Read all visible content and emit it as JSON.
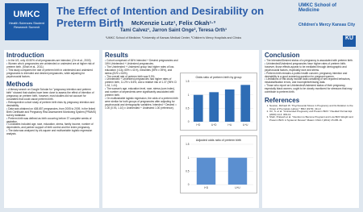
{
  "header": {
    "logo_left": {
      "title": "UMKC",
      "subtitle": "Health Sciences Student Research Summit"
    },
    "title": "The Effect of Intention and Desirability on Preterm Birth",
    "authors": "McKenzie Lutz¹, Felix Okah¹·³",
    "authors2": "Tami Calvez¹, Jarron Saint Onge², Teresa Orth¹",
    "affiliations": "¹UMKC School of Medicine, ²University of Kansas Medical Center, ³Children's Mercy Hospitals and Clinics",
    "logos_right": [
      "UMKC School of Medicine",
      "Children's Mercy Kansas City",
      "KU"
    ]
  },
  "introduction": {
    "heading": "Introduction",
    "bullets": [
      "In the US, only 40-50% of all pregnancies are intended. (Orr et al., 2000)",
      "Women who's pregnancies are unintended or undesired are at higher risk of preterm birth. (Shah et al., 2011)",
      "This study compares the rate of preterm birth in unintended and undesired pregnancies to intended and desired pregnancies, while adjusting for psychosocial factors."
    ]
  },
  "methods": {
    "heading": "Methods",
    "bullets": [
      "A literary search on Google Scholar for \"pregnancy intention and preterm birth\" showed that studies have been done to assess the effect of intention of pregnancy on preterm birth, however, most studies did not account for covariates that could cause preterm birth.",
      "Retrospective cohort study of preterm birth risks by pregnancy intention and desirability.",
      "Data was obtained on 408,657 pregnancies, from 2005 to 2009, in the linked Birth Certificate and Pregnancy Risk Assessment Monitoring System (PRAMS) survey database.",
      "Preterm birth was defined as birth occurring before 37 complete weeks of gestation.",
      "Covariates included age, race, education, stress, family income, number of dependents, and partner support of birth control and the index pregnancy.",
      "The data was analyzed by chi-square and multivariable logistic regression analysis."
    ]
  },
  "results": {
    "heading": "Results",
    "bullets": [
      "Cohort comprised of 84% Intended + Desired pregnancies and 16% Unintended + Undesired pregnancies.",
      "The Unintended + Undesired group had higher rates of low-education (<13y, 65% v 41%), minorities (59% v 39%), and stress (81% v 64%).",
      "The overall rate of preterm birth was 9.0%",
      "Unintended + Undesired pregnancies had higher rates of preterm birth, 11.2% v 8.6%, and a relative risk of 1.37 (95% CI 1.34, 1.41).",
      "The woman's age, education level, race, stress (sum index), and number of dependents were significantly associated with preterm birth.",
      "On multivariable logistic regression, the odds of a preterm birth were similar for both groups of pregnancies after adjusting for psychosocial and demographic variables; Intended + Desired = 1.00 (0.93, 1.10) v Unintended + Undesired 1.00 (reference)."
    ],
    "charts": [
      {
        "type": "bar",
        "title": "Odds ratio of preterm birth by group",
        "categories": [
          "I+D",
          "U+D",
          "I+U",
          "U+U"
        ],
        "values": [
          1,
          1.1,
          1.2,
          1.37
        ],
        "color": "#2f6db5",
        "ylim": [
          0,
          1.5
        ],
        "yticks": [
          0,
          0.5,
          1,
          1.5
        ]
      },
      {
        "type": "bar",
        "title": "Adjusted odds ratio of preterm birth",
        "categories": [
          "I+D",
          "U+U"
        ],
        "values": [
          1,
          1
        ],
        "color": "#5b8fd0",
        "ylim": [
          0,
          1.5
        ],
        "yticks": [
          0,
          0.5,
          1,
          1.5
        ]
      }
    ]
  },
  "conclusion": {
    "heading": "Conclusion",
    "bullets": [
      "The Intended/Desired status of a pregnancy is associated with preterm birth.",
      "Unintended/Undesired pregnancies have higher rates of preterm birth; however, those effects appear to be mediated through demographic and psychosocial factors, especially race and stress.",
      "Preterm birth remains a public health concern; pregnancy intention and desirability is a good screening question for pregnant women.",
      "Limitations of this study include data consisting of self-reported behaviors, misclassification errors, and incomplete/missing data.",
      "Those who report an Unintended/Undesired status of their pregnancy, especially black women, ought to be closely monitored for stressors that may contribute to preterm birth."
    ]
  },
  "references": {
    "heading": "References",
    "items": [
      "Newton, Richard W. \"Psychosocial Stress in Pregnancy and Its Relation to the Onset of Premature Labour.\" BMJ (1979): 411-3.",
      "Orr, S. et al. \"Unintended Pregnancy and Preterm Birth.\" Paediatr Perinat Epi (2000) 14.4: 309-13.",
      "Shah, Prakesh et al. \"Intention to Become Pregnant and Low Birth Weight and Preterm Birth: A Systemic Review\" Matern Child J (2011) 15:205-16."
    ]
  }
}
